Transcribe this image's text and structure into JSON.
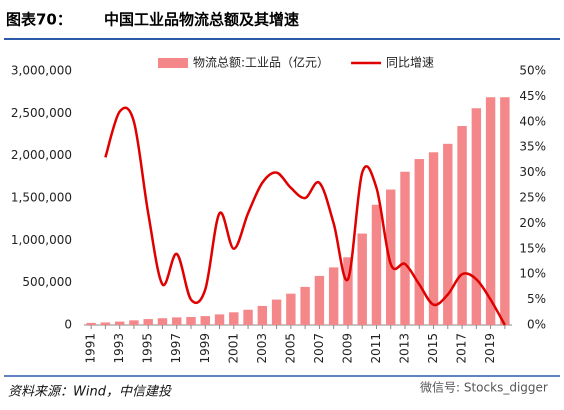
{
  "chart_data": {
    "type": "bar-line",
    "figure_label": "图表70：",
    "title": "中国工业品物流总额及其增速",
    "source": "资料来源：Wind，中信建投",
    "watermark": "微信号: Stocks_digger",
    "categories": [
      "1991",
      null,
      "1993",
      null,
      "1995",
      null,
      "1997",
      null,
      "1999",
      null,
      "2001",
      null,
      "2003",
      null,
      "2005",
      null,
      "2007",
      null,
      "2009",
      null,
      "2011",
      null,
      "2013",
      null,
      "2015",
      null,
      "2017",
      null,
      "2019",
      null
    ],
    "series": [
      {
        "name": "物流总额:工业品（亿元）",
        "type": "bar",
        "color": "#f4878a",
        "values": [
          25000,
          30000,
          40000,
          55000,
          70000,
          80000,
          90000,
          95000,
          105000,
          125000,
          150000,
          180000,
          225000,
          300000,
          370000,
          450000,
          580000,
          680000,
          800000,
          1080000,
          1420000,
          1600000,
          1810000,
          1960000,
          2040000,
          2140000,
          2350000,
          2560000,
          2690000,
          2690000
        ]
      },
      {
        "name": "同比增速",
        "type": "line",
        "axis": "y2",
        "color": "#e00000",
        "values": [
          null,
          33,
          42,
          40,
          22,
          8,
          14,
          5,
          7,
          22,
          15,
          22,
          28,
          30,
          27,
          25,
          28,
          20,
          9,
          30,
          27,
          12,
          12,
          8,
          4,
          6,
          10,
          9,
          5,
          0
        ]
      }
    ],
    "ylim": [
      0,
      3000000
    ],
    "yticks": [
      0,
      {
        "value": 500000,
        "label": "500,000"
      },
      {
        "value": 1000000,
        "label": "1,000,000"
      },
      {
        "value": 1500000,
        "label": "1,500,000"
      },
      {
        "value": 2000000,
        "label": "2,000,000"
      },
      {
        "value": 2500000,
        "label": "2,500,000"
      },
      {
        "value": 3000000,
        "label": "3,000,000"
      }
    ],
    "y2lim": [
      0,
      50
    ],
    "y2ticks": [
      {
        "value": 0,
        "label": "0%"
      },
      {
        "value": 5,
        "label": "5%"
      },
      {
        "value": 10,
        "label": "10%"
      },
      {
        "value": 15,
        "label": "15%"
      },
      {
        "value": 20,
        "label": "20%"
      },
      {
        "value": 25,
        "label": "25%"
      },
      {
        "value": 30,
        "label": "30%"
      },
      {
        "value": 35,
        "label": "35%"
      },
      {
        "value": 40,
        "label": "40%"
      },
      {
        "value": 45,
        "label": "45%"
      },
      {
        "value": 50,
        "label": "50%"
      }
    ],
    "legend": "top"
  }
}
